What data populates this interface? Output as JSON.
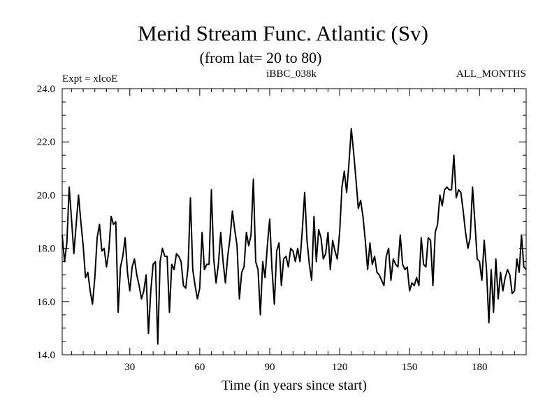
{
  "chart_data": {
    "type": "line",
    "title": "Merid Stream Func. Atlantic (Sv)",
    "subtitle": "(from lat= 20 to 80)",
    "annotations": {
      "left": "Expt = xlcoE",
      "center": "iBBC_038k",
      "right": "ALL_MONTHS"
    },
    "xlabel": "Time (in years since start)",
    "ylabel": "",
    "xlim": [
      1,
      200
    ],
    "ylim": [
      14.0,
      24.0
    ],
    "x_ticks": [
      30,
      60,
      90,
      120,
      150,
      180
    ],
    "x_tick_labels": [
      "30",
      "60",
      "90",
      "120",
      "150",
      "180"
    ],
    "y_ticks": [
      14,
      16,
      18,
      20,
      22,
      24
    ],
    "y_tick_labels": [
      "14.0",
      "16.0",
      "18.0",
      "20.0",
      "22.0",
      "24.0"
    ],
    "grid": false,
    "legend": "none",
    "line_color": "#000000",
    "series": [
      {
        "name": "Merid Stream Func. Atlantic",
        "x_start": 1,
        "x_step": 1,
        "values": [
          18.5,
          17.5,
          18.2,
          20.3,
          19.1,
          17.8,
          18.9,
          20.0,
          19.0,
          18.1,
          16.9,
          17.1,
          16.4,
          15.9,
          16.9,
          18.4,
          18.9,
          17.9,
          18.0,
          17.3,
          17.9,
          19.2,
          18.9,
          19.0,
          15.6,
          17.3,
          17.7,
          18.4,
          17.1,
          16.4,
          17.3,
          17.6,
          17.0,
          16.6,
          16.1,
          16.4,
          17.0,
          14.8,
          16.4,
          17.4,
          17.5,
          14.4,
          17.5,
          18.0,
          17.7,
          17.7,
          15.6,
          17.4,
          17.2,
          17.8,
          17.7,
          17.5,
          16.6,
          16.5,
          17.3,
          19.9,
          17.2,
          16.6,
          16.1,
          16.5,
          18.6,
          17.2,
          17.4,
          17.4,
          20.2,
          17.6,
          16.7,
          17.4,
          18.6,
          17.5,
          16.7,
          17.7,
          18.4,
          19.4,
          18.7,
          18.1,
          16.1,
          17.1,
          17.3,
          18.6,
          18.1,
          18.5,
          20.6,
          17.5,
          17.2,
          15.5,
          17.5,
          16.9,
          18.1,
          19.1,
          17.2,
          15.9,
          17.9,
          18.2,
          16.6,
          17.6,
          17.7,
          17.3,
          18.0,
          17.9,
          17.5,
          18.0,
          17.5,
          18.7,
          20.1,
          18.3,
          17.4,
          16.8,
          19.2,
          17.5,
          18.7,
          18.4,
          17.6,
          17.8,
          18.6,
          17.2,
          18.3,
          17.9,
          17.6,
          18.6,
          20.3,
          20.9,
          20.1,
          21.2,
          22.5,
          21.6,
          20.6,
          19.5,
          19.8,
          19.2,
          18.3,
          17.2,
          18.2,
          17.4,
          17.7,
          17.1,
          17.0,
          16.8,
          16.6,
          17.7,
          18.0,
          16.8,
          17.6,
          17.4,
          17.3,
          18.5,
          17.4,
          17.2,
          17.3,
          16.4,
          16.7,
          16.6,
          16.9,
          16.6,
          18.4,
          17.4,
          17.3,
          18.4,
          18.3,
          16.6,
          18.6,
          18.9,
          20.0,
          19.6,
          20.2,
          20.3,
          20.2,
          20.2,
          21.5,
          19.9,
          20.2,
          20.1,
          19.4,
          18.6,
          18.0,
          18.4,
          20.3,
          19.0,
          17.6,
          17.5,
          16.8,
          18.3,
          17.2,
          15.2,
          17.2,
          15.6,
          17.6,
          16.1,
          17.1,
          16.4,
          16.9,
          17.2,
          17.0,
          16.3,
          16.4,
          17.6,
          17.1,
          18.5,
          17.3,
          17.2
        ]
      }
    ]
  }
}
